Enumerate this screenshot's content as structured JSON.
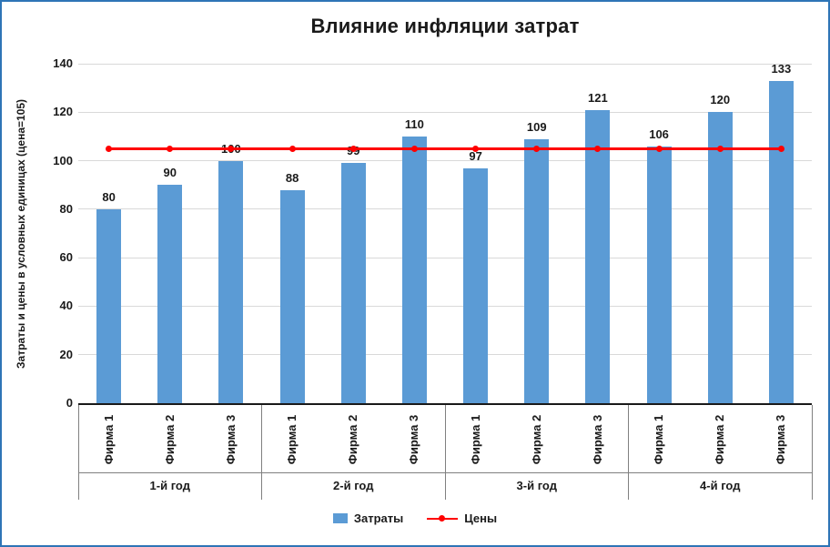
{
  "colors": {
    "bar": "#5B9BD5",
    "line": "#FF0000",
    "grid": "#D9D9D9",
    "axis": "#1a1a1a",
    "separator": "#808080",
    "border": "#2E75B6"
  },
  "chart_data": {
    "type": "bar",
    "title": "Влияние инфляции затрат",
    "ylabel": "Затраты и цены в условных единицах (цена=105)",
    "xlabel": "",
    "ylim": [
      0,
      140
    ],
    "ytick_step": 20,
    "yticks": [
      0,
      20,
      40,
      60,
      80,
      100,
      120,
      140
    ],
    "grid": true,
    "legend_position": "bottom",
    "groups": [
      "1-й год",
      "2-й год",
      "3-й год",
      "4-й год"
    ],
    "categories": [
      "Фирма 1",
      "Фирма 2",
      "Фирма 3",
      "Фирма 1",
      "Фирма 2",
      "Фирма 3",
      "Фирма 1",
      "Фирма 2",
      "Фирма 3",
      "Фирма 1",
      "Фирма 2",
      "Фирма 3"
    ],
    "series": [
      {
        "name": "Затраты",
        "type": "bar",
        "color": "#5B9BD5",
        "values": [
          80,
          90,
          100,
          88,
          99,
          110,
          97,
          109,
          121,
          106,
          120,
          133
        ]
      },
      {
        "name": "Цены",
        "type": "line",
        "color": "#FF0000",
        "values": [
          105,
          105,
          105,
          105,
          105,
          105,
          105,
          105,
          105,
          105,
          105,
          105
        ]
      }
    ]
  }
}
